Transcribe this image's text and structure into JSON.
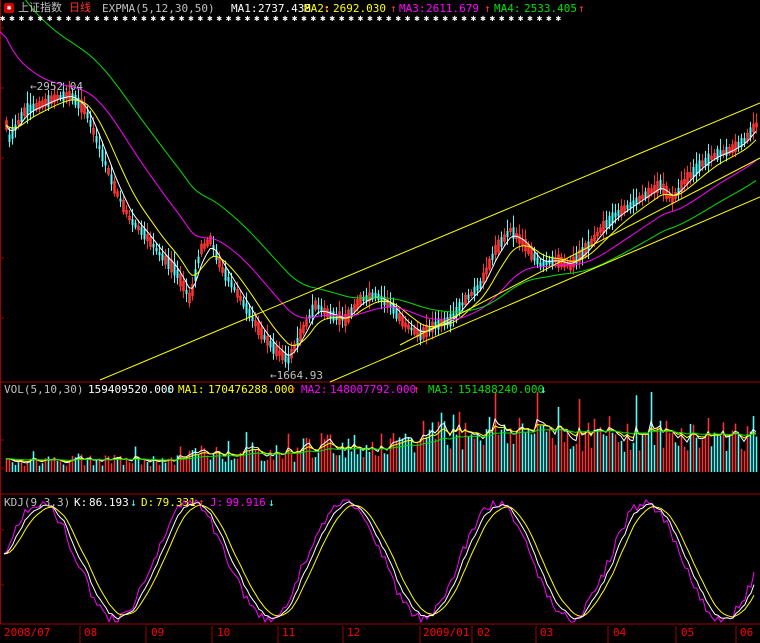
{
  "main": {
    "title": "上证指数",
    "period": "日线",
    "indicator": "EXPMA(5,12,30,50)",
    "ma1_label": "MA1:",
    "ma1_value": "2737.438",
    "ma2_label": "MA2:",
    "ma2_value": "2692.030",
    "ma3_label": "MA3:",
    "ma3_value": "2611.679",
    "ma4_label": "MA4:",
    "ma4_value": "2533.405",
    "up_arrow": "↑",
    "high_label": "2952.04",
    "low_label": "1664.93"
  },
  "volume": {
    "indicator": "VOL(5,10,30)",
    "value": "159409520.000",
    "value_arrow": "↓",
    "ma1_label": "MA1:",
    "ma1_value": "170476288.000",
    "ma1_arrow": "↑",
    "ma2_label": "MA2:",
    "ma2_value": "148007792.000",
    "ma2_arrow": "↑",
    "ma3_label": "MA3:",
    "ma3_value": "151488240.000",
    "ma3_arrow": "↓"
  },
  "kdj": {
    "indicator": "KDJ(9,3,3)",
    "k_label": "K:",
    "k_value": "86.193",
    "k_arrow": "↓",
    "d_label": "D:",
    "d_value": "79.331",
    "d_arrow": "↑",
    "j_label": "J:",
    "j_value": "99.916",
    "j_arrow": "↓"
  },
  "time_axis": [
    "2008/07",
    "08",
    "09",
    "10",
    "11",
    "12",
    "2009/01",
    "02",
    "03",
    "04",
    "05",
    "06"
  ],
  "colors": {
    "background": "#000000",
    "up": "#ff3232",
    "down": "#54fcfc",
    "ma1": "#ffffff",
    "ma2": "#ffff00",
    "ma3": "#ff00ff",
    "ma4": "#00e000",
    "trendline": "#ffff00",
    "axis_label": "#ff0000",
    "label_white": "#c0c0c0"
  },
  "icons": {
    "app": "stock-app-icon"
  }
}
